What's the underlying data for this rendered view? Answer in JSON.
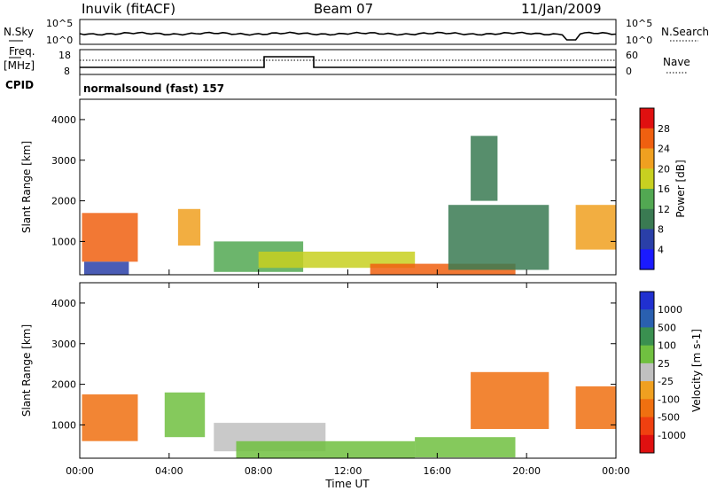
{
  "header": {
    "station": "Inuvik (fitACF)",
    "beam": "Beam 07",
    "date": "11/Jan/2009"
  },
  "panels": {
    "nsky": {
      "left_label": "N.Sky",
      "right_label": "N.Search",
      "left_ticks": [
        "10^5",
        "10^0"
      ],
      "right_ticks": [
        "10^5",
        "10^0"
      ]
    },
    "freq": {
      "left_label_1": "Freq.",
      "left_label_2": "[MHz]",
      "right_label": "Nave",
      "left_ticks": [
        "18",
        "8"
      ],
      "right_ticks": [
        "60",
        "0"
      ]
    },
    "cpid": {
      "left_label": "CPID",
      "program": "normalsound (fast) 157"
    }
  },
  "colors": {
    "power": [
      "#1a1aff",
      "#2a3fa8",
      "#3a7a52",
      "#52a852",
      "#c8d020",
      "#f0a020",
      "#f06010",
      "#e01010"
    ],
    "velocity": [
      "#e01010",
      "#f04010",
      "#f07010",
      "#f0a020",
      "#c0c0c0",
      "#70c040",
      "#3a9050",
      "#2a60b0",
      "#2030d0"
    ]
  },
  "chart_data": [
    {
      "type": "heatmap",
      "name": "Power",
      "ylabel": "Slant Range [km]",
      "ylim": [
        180,
        4500
      ],
      "yticks": [
        1000,
        2000,
        3000,
        4000
      ],
      "colorbar": {
        "label": "Power [dB]",
        "ticks": [
          4,
          8,
          12,
          16,
          20,
          24,
          28
        ],
        "range": [
          0,
          32
        ]
      },
      "regions": [
        {
          "t0": 0.1,
          "t1": 2.6,
          "r0": 500,
          "r1": 1700,
          "value": 26
        },
        {
          "t0": 0.2,
          "t1": 2.2,
          "r0": 180,
          "r1": 500,
          "value": 6
        },
        {
          "t0": 4.4,
          "t1": 5.4,
          "r0": 900,
          "r1": 1800,
          "value": 22
        },
        {
          "t0": 6.0,
          "t1": 10.0,
          "r0": 250,
          "r1": 1000,
          "value": 14
        },
        {
          "t0": 8.0,
          "t1": 15.0,
          "r0": 350,
          "r1": 750,
          "value": 18
        },
        {
          "t0": 13.0,
          "t1": 19.5,
          "r0": 180,
          "r1": 450,
          "value": 27
        },
        {
          "t0": 16.5,
          "t1": 21.0,
          "r0": 300,
          "r1": 1900,
          "value": 10
        },
        {
          "t0": 17.5,
          "t1": 18.7,
          "r0": 2000,
          "r1": 3600,
          "value": 8
        },
        {
          "t0": 22.2,
          "t1": 24.0,
          "r0": 800,
          "r1": 1900,
          "value": 20
        }
      ]
    },
    {
      "type": "heatmap",
      "name": "Velocity",
      "ylabel": "Slant Range [km]",
      "ylim": [
        180,
        4500
      ],
      "yticks": [
        1000,
        2000,
        3000,
        4000
      ],
      "xlabel": "Time UT",
      "xticks": [
        "00:00",
        "04:00",
        "08:00",
        "12:00",
        "16:00",
        "20:00",
        "00:00"
      ],
      "xlim": [
        0,
        24
      ],
      "colorbar": {
        "label": "Velocity [m s-1]",
        "ticks": [
          "1000",
          "500",
          "100",
          "25",
          "-25",
          "-100",
          "-500",
          "-1000"
        ]
      },
      "regions": [
        {
          "t0": 0.1,
          "t1": 2.6,
          "r0": 600,
          "r1": 1750,
          "value": -150
        },
        {
          "t0": 3.8,
          "t1": 5.6,
          "r0": 700,
          "r1": 1800,
          "value": 50
        },
        {
          "t0": 6.0,
          "t1": 11.0,
          "r0": 350,
          "r1": 1050,
          "value": 0
        },
        {
          "t0": 7.0,
          "t1": 15.0,
          "r0": 180,
          "r1": 600,
          "value": 60
        },
        {
          "t0": 15.0,
          "t1": 19.5,
          "r0": 200,
          "r1": 700,
          "value": 80
        },
        {
          "t0": 17.5,
          "t1": 21.0,
          "r0": 900,
          "r1": 2300,
          "value": -150
        },
        {
          "t0": 22.2,
          "t1": 24.0,
          "r0": 900,
          "r1": 1950,
          "value": -150
        }
      ]
    }
  ]
}
